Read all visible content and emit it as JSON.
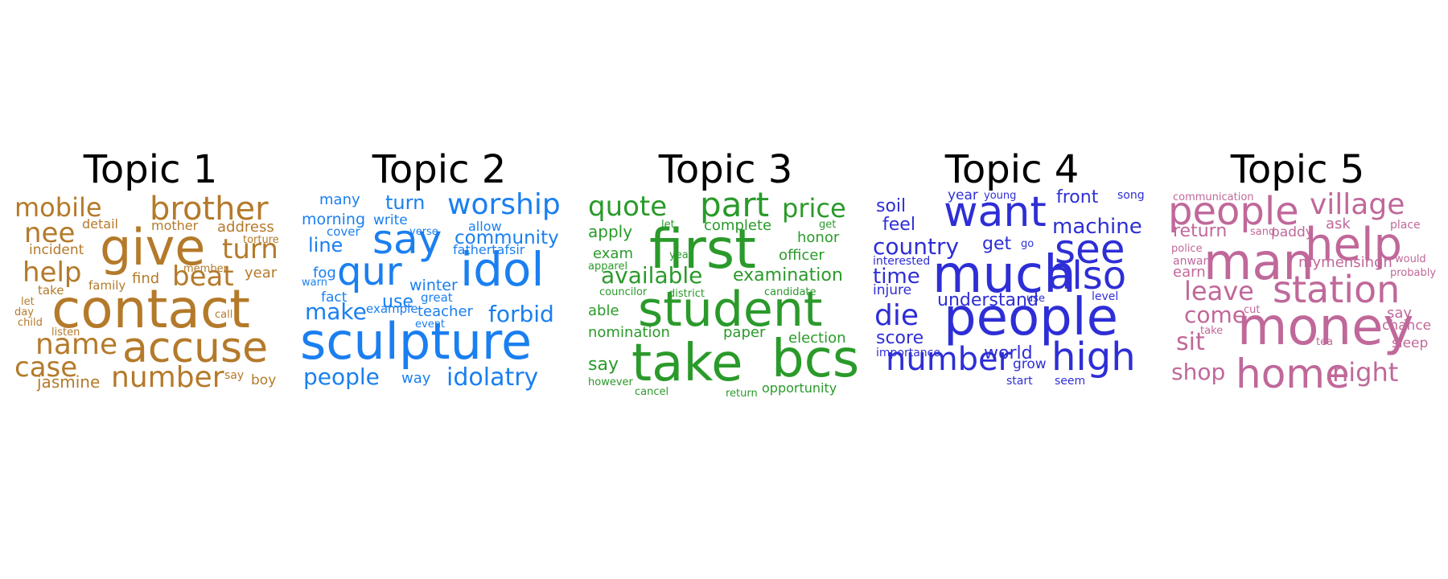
{
  "topics": [
    {
      "title": "Topic 1",
      "color": "#b47a2a",
      "words": [
        "mobile",
        "brother",
        "nee",
        "give",
        "detail",
        "mother",
        "address",
        "torture",
        "incident",
        "turn",
        "help",
        "find",
        "beat",
        "year",
        "member",
        "take",
        "contact",
        "let",
        "day",
        "call",
        "child",
        "listen",
        "name",
        "accuse",
        "case",
        "jasmine",
        "number",
        "say",
        "boy",
        "family"
      ]
    },
    {
      "title": "Topic 2",
      "color": "#1a7ff0",
      "words": [
        "many",
        "turn",
        "worship",
        "morning",
        "write",
        "cover",
        "verse",
        "allow",
        "say",
        "community",
        "line",
        "fathertafsir",
        "qur",
        "idol",
        "fog",
        "warn",
        "winter",
        "fact",
        "use",
        "great",
        "make",
        "example",
        "teacher",
        "forbid",
        "event",
        "sculpture",
        "people",
        "way",
        "idolatry"
      ]
    },
    {
      "title": "Topic 3",
      "color": "#2a9a2a",
      "words": [
        "quote",
        "part",
        "price",
        "let",
        "complete",
        "get",
        "apply",
        "first",
        "honor",
        "exam",
        "year",
        "officer",
        "apparel",
        "available",
        "examination",
        "councilor",
        "district",
        "candidate",
        "able",
        "student",
        "nomination",
        "paper",
        "election",
        "say",
        "take",
        "bcs",
        "however",
        "cancel",
        "return",
        "opportunity"
      ]
    },
    {
      "title": "Topic 4",
      "color": "#2e2ed6",
      "words": [
        "year",
        "young",
        "front",
        "song",
        "soil",
        "want",
        "feel",
        "machine",
        "country",
        "get",
        "go",
        "see",
        "interested",
        "time",
        "much",
        "also",
        "injure",
        "understand",
        "use",
        "level",
        "die",
        "people",
        "score",
        "importance",
        "world",
        "number",
        "high",
        "grow",
        "start",
        "seem"
      ]
    },
    {
      "title": "Topic 5",
      "color": "#c0689a",
      "words": [
        "communication",
        "people",
        "village",
        "ask",
        "place",
        "return",
        "sand",
        "paddy",
        "help",
        "police",
        "man",
        "anwar",
        "earn",
        "mymensingh",
        "would",
        "probably",
        "leave",
        "station",
        "come",
        "cut",
        "say",
        "sit",
        "take",
        "money",
        "chance",
        "tea",
        "sleep",
        "shop",
        "home",
        "night"
      ]
    }
  ]
}
